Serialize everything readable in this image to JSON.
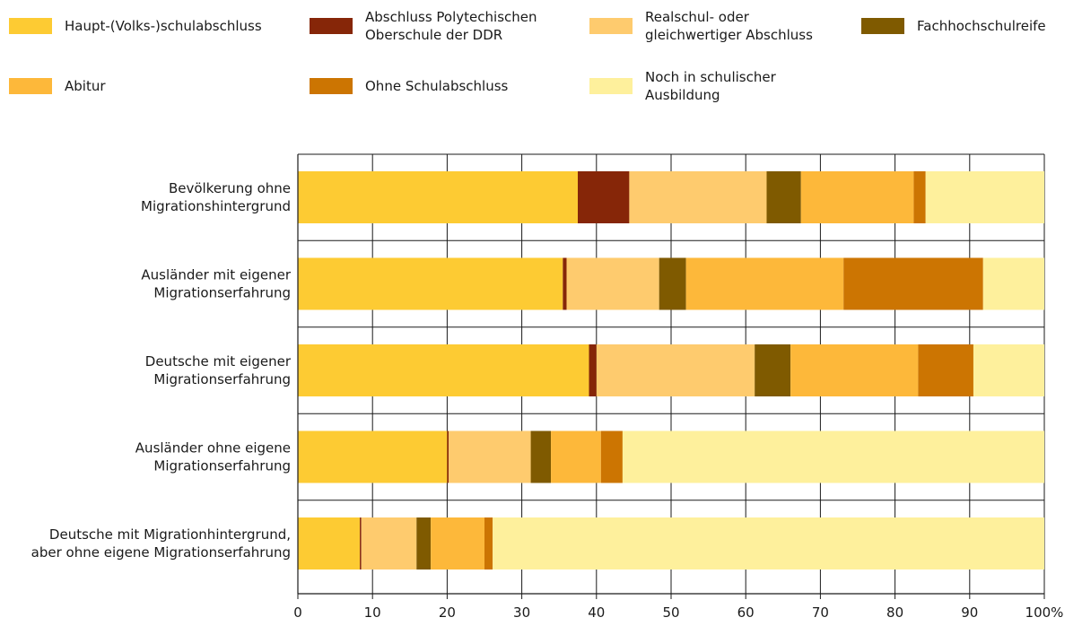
{
  "chart_data": {
    "type": "bar",
    "orientation": "horizontal",
    "stacked": true,
    "xlim": [
      0,
      100
    ],
    "grid": true,
    "legend_placement": "top",
    "x_ticks": [
      "0",
      "10",
      "20",
      "30",
      "40",
      "50",
      "60",
      "70",
      "80",
      "90",
      "100%"
    ],
    "categories": [
      [
        "Bevölkerung ohne",
        "Migrationshintergrund"
      ],
      [
        "Ausländer mit eigener",
        "Migrationserfahrung"
      ],
      [
        "Deutsche mit eigener",
        "Migrationserfahrung"
      ],
      [
        "Ausländer ohne eigene",
        "Migrationserfahrung"
      ],
      [
        "Deutsche mit Migrationhintergrund,",
        "aber ohne eigene Migrationserfahrung"
      ]
    ],
    "series": [
      {
        "name": [
          "Haupt-(Volks-)schulabschluss"
        ],
        "color": "#FDCB33",
        "values": [
          37.5,
          35.5,
          39.0,
          20.0,
          8.3
        ]
      },
      {
        "name": [
          "Abschluss Polytechischen",
          "Oberschule der DDR"
        ],
        "color": "#862608",
        "values": [
          6.9,
          0.5,
          1.0,
          0.2,
          0.2
        ]
      },
      {
        "name": [
          "Realschul- oder",
          "gleichwertiger Abschluss"
        ],
        "color": "#FECB6E",
        "values": [
          18.4,
          12.4,
          21.2,
          11.0,
          7.4
        ]
      },
      {
        "name": [
          "Fachhochschulreife"
        ],
        "color": "#7F5A00",
        "values": [
          4.6,
          3.6,
          4.8,
          2.7,
          1.9
        ]
      },
      {
        "name": [
          "Abitur"
        ],
        "color": "#FDB83A",
        "values": [
          15.1,
          21.1,
          17.1,
          6.7,
          7.2
        ]
      },
      {
        "name": [
          "Ohne Schulabschluss"
        ],
        "color": "#CC7502",
        "values": [
          1.6,
          18.7,
          7.4,
          2.9,
          1.1
        ]
      },
      {
        "name": [
          "Noch in schulischer",
          "Ausbildung"
        ],
        "color": "#FEF09C",
        "values": [
          15.9,
          8.2,
          9.5,
          56.5,
          73.9
        ]
      }
    ]
  }
}
